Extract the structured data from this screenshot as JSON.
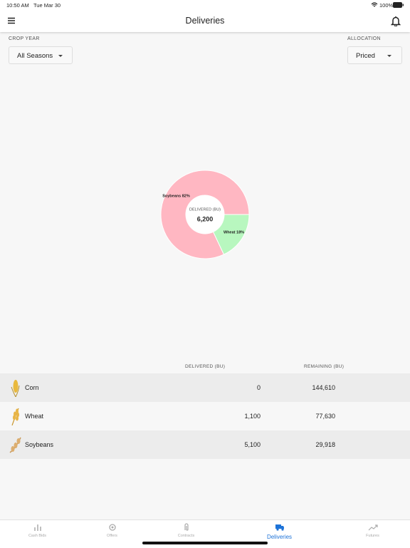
{
  "status_bar": {
    "time": "10:50 AM",
    "date": "Tue Mar 30",
    "battery": "100%"
  },
  "header": {
    "title": "Deliveries"
  },
  "filters": {
    "crop_year": {
      "label": "CROP YEAR",
      "value": "All Seasons"
    },
    "allocation": {
      "label": "ALLOCATION",
      "value": "Priced"
    }
  },
  "chart_data": {
    "type": "pie",
    "categories": [
      "Soybeans",
      "Wheat"
    ],
    "values": [
      82,
      18
    ],
    "value_labels": [
      "82%",
      "18%"
    ],
    "colors": [
      "#ffb7c2",
      "#b8f7bf"
    ],
    "center_label": "DELIVERED (BU)",
    "center_value": "6,200"
  },
  "table": {
    "columns": [
      "DELIVERED (BU)",
      "REMAINING (BU)"
    ],
    "rows": [
      [
        "Corn",
        "0",
        "144,610"
      ],
      [
        "Wheat",
        "1,100",
        "77,630"
      ],
      [
        "Soybeans",
        "5,100",
        "29,918"
      ]
    ]
  },
  "tab_bar": {
    "tabs": [
      "Cash Bids",
      "Offers",
      "Contracts",
      "Deliveries",
      "Futures"
    ]
  }
}
